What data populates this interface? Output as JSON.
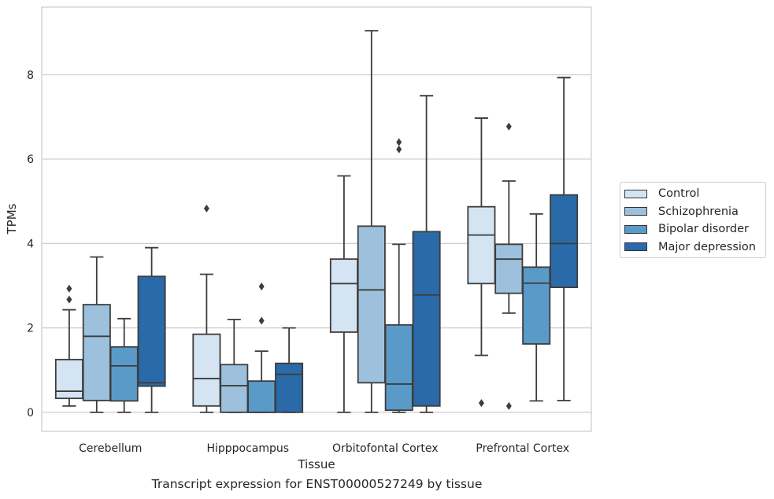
{
  "chart_data": {
    "type": "box",
    "caption": "Transcript expression for ENST00000527249 by tissue",
    "xlabel": "Tissue",
    "ylabel": "TPMs",
    "ylim": [
      -0.45,
      9.6
    ],
    "yticks": [
      "0",
      "2",
      "4",
      "6",
      "8"
    ],
    "grid": "horizontal",
    "legend_position": "right",
    "categories": [
      "Cerebellum",
      "Hipppocampus",
      "Orbitofontal Cortex",
      "Prefrontal Cortex"
    ],
    "series": [
      {
        "name": "Control",
        "color": "#d4e4f2",
        "boxes": [
          {
            "whislo": 0.15,
            "q1": 0.33,
            "med": 0.5,
            "q3": 1.25,
            "whishi": 2.43,
            "fliers": [
              2.67,
              2.93
            ]
          },
          {
            "whislo": 0.0,
            "q1": 0.15,
            "med": 0.8,
            "q3": 1.85,
            "whishi": 3.27,
            "fliers": [
              4.83
            ]
          },
          {
            "whislo": 0.0,
            "q1": 1.9,
            "med": 3.05,
            "q3": 3.63,
            "whishi": 5.6,
            "fliers": []
          },
          {
            "whislo": 1.35,
            "q1": 3.05,
            "med": 4.2,
            "q3": 4.87,
            "whishi": 6.97,
            "fliers": [
              0.22
            ]
          }
        ]
      },
      {
        "name": "Schizophrenia",
        "color": "#9dc1dc",
        "boxes": [
          {
            "whislo": 0.0,
            "q1": 0.28,
            "med": 1.8,
            "q3": 2.55,
            "whishi": 3.68,
            "fliers": []
          },
          {
            "whislo": 0.0,
            "q1": 0.0,
            "med": 0.63,
            "q3": 1.13,
            "whishi": 2.2,
            "fliers": []
          },
          {
            "whislo": 0.0,
            "q1": 0.7,
            "med": 2.9,
            "q3": 4.41,
            "whishi": 9.04,
            "fliers": []
          },
          {
            "whislo": 2.35,
            "q1": 2.82,
            "med": 3.63,
            "q3": 3.98,
            "whishi": 5.48,
            "fliers": [
              0.15,
              6.77
            ]
          }
        ]
      },
      {
        "name": "Bipolar disorder",
        "color": "#5a9ac8",
        "boxes": [
          {
            "whislo": 0.0,
            "q1": 0.27,
            "med": 1.1,
            "q3": 1.55,
            "whishi": 2.22,
            "fliers": []
          },
          {
            "whislo": 0.0,
            "q1": 0.0,
            "med": 0.0,
            "q3": 0.74,
            "whishi": 1.45,
            "fliers": [
              2.17,
              2.98
            ]
          },
          {
            "whislo": 0.0,
            "q1": 0.05,
            "med": 0.67,
            "q3": 2.07,
            "whishi": 3.98,
            "fliers": [
              6.23,
              6.4
            ]
          },
          {
            "whislo": 0.27,
            "q1": 1.62,
            "med": 3.06,
            "q3": 3.44,
            "whishi": 4.7,
            "fliers": []
          }
        ]
      },
      {
        "name": "Major depression",
        "color": "#2a6aa8",
        "boxes": [
          {
            "whislo": 0.0,
            "q1": 0.62,
            "med": 0.7,
            "q3": 3.22,
            "whishi": 3.9,
            "fliers": []
          },
          {
            "whislo": 0.0,
            "q1": 0.0,
            "med": 0.9,
            "q3": 1.16,
            "whishi": 2.0,
            "fliers": []
          },
          {
            "whislo": 0.0,
            "q1": 0.15,
            "med": 2.78,
            "q3": 4.28,
            "whishi": 7.5,
            "fliers": []
          },
          {
            "whislo": 0.28,
            "q1": 2.96,
            "med": 4.0,
            "q3": 5.15,
            "whishi": 7.93,
            "fliers": []
          }
        ]
      }
    ]
  }
}
